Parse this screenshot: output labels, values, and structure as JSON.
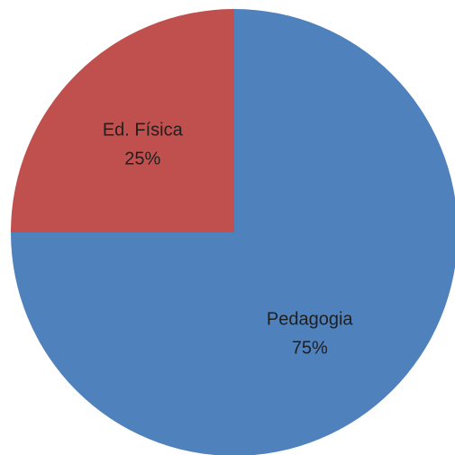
{
  "chart_data": {
    "type": "pie",
    "categories": [
      "Pedagogia",
      "Ed. Física"
    ],
    "values": [
      75,
      25
    ],
    "data_labels": [
      "75%",
      "25%"
    ],
    "colors": [
      "#4f81bd",
      "#c0504d"
    ],
    "legend": "none"
  }
}
